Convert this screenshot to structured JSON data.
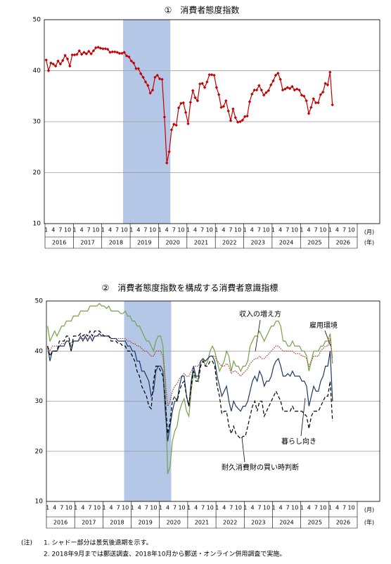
{
  "chart_data": [
    {
      "type": "line",
      "title": "①　消費者態度指数",
      "x": [
        "2016-01",
        "2016-02",
        "2016-03",
        "2016-04",
        "2016-05",
        "2016-06",
        "2016-07",
        "2016-08",
        "2016-09",
        "2016-10",
        "2016-11",
        "2016-12",
        "2017-01",
        "2017-02",
        "2017-03",
        "2017-04",
        "2017-05",
        "2017-06",
        "2017-07",
        "2017-08",
        "2017-09",
        "2017-10",
        "2017-11",
        "2017-12",
        "2018-01",
        "2018-02",
        "2018-03",
        "2018-04",
        "2018-05",
        "2018-06",
        "2018-07",
        "2018-08",
        "2018-09",
        "2018-10",
        "2018-11",
        "2018-12",
        "2019-01",
        "2019-02",
        "2019-03",
        "2019-04",
        "2019-05",
        "2019-06",
        "2019-07",
        "2019-08",
        "2019-09",
        "2019-10",
        "2019-11",
        "2019-12",
        "2020-01",
        "2020-02",
        "2020-03",
        "2020-04",
        "2020-05",
        "2020-06",
        "2020-07",
        "2020-08",
        "2020-09",
        "2020-10",
        "2020-11",
        "2020-12",
        "2021-01",
        "2021-02",
        "2021-03",
        "2021-04",
        "2021-05",
        "2021-06",
        "2021-07",
        "2021-08",
        "2021-09",
        "2021-10",
        "2021-11",
        "2021-12",
        "2022-01",
        "2022-02",
        "2022-03",
        "2022-04",
        "2022-05",
        "2022-06",
        "2022-07",
        "2022-08",
        "2022-09",
        "2022-10",
        "2022-11",
        "2022-12",
        "2023-01",
        "2023-02",
        "2023-03",
        "2023-04",
        "2023-05",
        "2023-06",
        "2023-07",
        "2023-08",
        "2023-09",
        "2023-10",
        "2023-11",
        "2023-12",
        "2024-01",
        "2024-02",
        "2024-03",
        "2024-04",
        "2024-05",
        "2024-06",
        "2024-07",
        "2024-08",
        "2024-09",
        "2024-10",
        "2024-11",
        "2024-12",
        "2025-01",
        "2025-02",
        "2025-03",
        "2025-04",
        "2025-05",
        "2025-06",
        "2025-07",
        "2025-08",
        "2025-09",
        "2025-10",
        "2025-11",
        "2025-12",
        "2026-01",
        "2026-02"
      ],
      "values": [
        42.1,
        40.0,
        41.5,
        41.3,
        40.9,
        41.9,
        41.3,
        42.0,
        43.0,
        42.3,
        40.9,
        43.1,
        43.1,
        43.2,
        43.9,
        43.2,
        43.6,
        43.3,
        43.8,
        43.3,
        43.9,
        44.5,
        44.6,
        44.4,
        44.3,
        44.3,
        44.2,
        43.6,
        43.7,
        43.7,
        43.6,
        43.4,
        43.4,
        43.6,
        42.9,
        42.7,
        41.9,
        41.5,
        40.4,
        40.4,
        39.4,
        38.7,
        37.8,
        37.1,
        35.6,
        36.2,
        38.7,
        39.1,
        38.4,
        38.3,
        30.9,
        21.9,
        24.1,
        28.4,
        29.5,
        29.3,
        32.7,
        33.6,
        33.7,
        31.8,
        29.6,
        33.8,
        36.1,
        34.7,
        34.1,
        37.4,
        37.5,
        36.7,
        37.8,
        39.2,
        39.2,
        39.1,
        36.7,
        35.3,
        32.8,
        33.0,
        34.1,
        32.1,
        30.2,
        32.5,
        30.8,
        29.9,
        30.0,
        30.3,
        31.0,
        31.1,
        33.9,
        35.4,
        36.2,
        36.2,
        37.1,
        36.2,
        35.2,
        35.7,
        36.1,
        37.2,
        38.0,
        39.1,
        39.5,
        38.3,
        36.2,
        36.4,
        36.7,
        36.5,
        36.9,
        36.2,
        36.4,
        36.2,
        35.2,
        35.0,
        34.1,
        31.6,
        32.8,
        34.5,
        33.7,
        33.7,
        35.3,
        35.8,
        37.5,
        37.2,
        39.7,
        33.3
      ],
      "color": "#c00000",
      "markers": true,
      "ylim": [
        10,
        50
      ],
      "yticks": [
        10,
        20,
        30,
        40,
        50
      ],
      "grid": true,
      "shading": [
        "2018-10",
        "2020-05"
      ],
      "month_labels": [
        "1",
        "4",
        "7",
        "10"
      ],
      "year_labels": [
        "2016",
        "2017",
        "2018",
        "2019",
        "2020",
        "2021",
        "2022",
        "2023",
        "2024",
        "2025",
        "2026"
      ],
      "month_unit": "(月)",
      "year_unit": "(年)"
    },
    {
      "type": "line",
      "title": "②　消費者態度指数を構成する消費者意識指標",
      "x": [
        "2016-01",
        "2016-02",
        "2016-03",
        "2016-04",
        "2016-05",
        "2016-06",
        "2016-07",
        "2016-08",
        "2016-09",
        "2016-10",
        "2016-11",
        "2016-12",
        "2017-01",
        "2017-02",
        "2017-03",
        "2017-04",
        "2017-05",
        "2017-06",
        "2017-07",
        "2017-08",
        "2017-09",
        "2017-10",
        "2017-11",
        "2017-12",
        "2018-01",
        "2018-02",
        "2018-03",
        "2018-04",
        "2018-05",
        "2018-06",
        "2018-07",
        "2018-08",
        "2018-09",
        "2018-10",
        "2018-11",
        "2018-12",
        "2019-01",
        "2019-02",
        "2019-03",
        "2019-04",
        "2019-05",
        "2019-06",
        "2019-07",
        "2019-08",
        "2019-09",
        "2019-10",
        "2019-11",
        "2019-12",
        "2020-01",
        "2020-02",
        "2020-03",
        "2020-04",
        "2020-05",
        "2020-06",
        "2020-07",
        "2020-08",
        "2020-09",
        "2020-10",
        "2020-11",
        "2020-12",
        "2021-01",
        "2021-02",
        "2021-03",
        "2021-04",
        "2021-05",
        "2021-06",
        "2021-07",
        "2021-08",
        "2021-09",
        "2021-10",
        "2021-11",
        "2021-12",
        "2022-01",
        "2022-02",
        "2022-03",
        "2022-04",
        "2022-05",
        "2022-06",
        "2022-07",
        "2022-08",
        "2022-09",
        "2022-10",
        "2022-11",
        "2022-12",
        "2023-01",
        "2023-02",
        "2023-03",
        "2023-04",
        "2023-05",
        "2023-06",
        "2023-07",
        "2023-08",
        "2023-09",
        "2023-10",
        "2023-11",
        "2023-12",
        "2024-01",
        "2024-02",
        "2024-03",
        "2024-04",
        "2024-05",
        "2024-06",
        "2024-07",
        "2024-08",
        "2024-09",
        "2024-10",
        "2024-11",
        "2024-12",
        "2025-01",
        "2025-02",
        "2025-03",
        "2025-04",
        "2025-05",
        "2025-06",
        "2025-07",
        "2025-08",
        "2025-09",
        "2025-10",
        "2025-11",
        "2025-12",
        "2026-01",
        "2026-02"
      ],
      "series": [
        {
          "name": "雇用環境",
          "color": "#77a04a",
          "style": "solid",
          "values": [
            45,
            42,
            43,
            44,
            43,
            44,
            45,
            45,
            46,
            46,
            46,
            47,
            47,
            47,
            48,
            48,
            48,
            48,
            49,
            49,
            49,
            49,
            49.5,
            49,
            49,
            48.5,
            49,
            48,
            48,
            48,
            48,
            47.5,
            47.5,
            48,
            47,
            47,
            46,
            46,
            45,
            45,
            44,
            43,
            42,
            42,
            41,
            40,
            42,
            43,
            43,
            41,
            33,
            15.5,
            17,
            22,
            24,
            25,
            28,
            29.5,
            30.5,
            28,
            27,
            32,
            36,
            35,
            34,
            38,
            38.5,
            37,
            38,
            40,
            41,
            40,
            38,
            36,
            37,
            38,
            40,
            39,
            36,
            38,
            37,
            37,
            36,
            37,
            37,
            38,
            41,
            42,
            43,
            43,
            44,
            43,
            42,
            43,
            44,
            45,
            45,
            46,
            46,
            45,
            42,
            42,
            41,
            41,
            42,
            41,
            41,
            41,
            40,
            40,
            39,
            36,
            38,
            40,
            40,
            40,
            41,
            41,
            42,
            42,
            43.5,
            37.5
          ]
        },
        {
          "name": "収入の増え方",
          "color": "#9b3a2a",
          "style": "dotted",
          "values": [
            41,
            40,
            41,
            41,
            41,
            41,
            41.5,
            41.5,
            42,
            42,
            41.5,
            42,
            42,
            42,
            42.5,
            42.5,
            42.5,
            42.5,
            42.5,
            42.5,
            43,
            43,
            43,
            43,
            43,
            43,
            43,
            42.5,
            42.5,
            42.5,
            42.5,
            42.5,
            42.5,
            42.5,
            42,
            42,
            41.5,
            41.5,
            41,
            41,
            40.5,
            40,
            40,
            39.5,
            39,
            39,
            40,
            40,
            40,
            39,
            34,
            29,
            30,
            32,
            33,
            33.5,
            34.5,
            35,
            35.5,
            35,
            35,
            36,
            37,
            37,
            37,
            38,
            38,
            38,
            38.5,
            39,
            39,
            39,
            38,
            37.5,
            37,
            37,
            37.5,
            37,
            35.5,
            36,
            36,
            35.5,
            35,
            35.5,
            36,
            36.5,
            37.5,
            38,
            38.5,
            38.5,
            39,
            38.5,
            38.5,
            39,
            39.5,
            40,
            40.5,
            41,
            41,
            40.5,
            40,
            40,
            40,
            40,
            40,
            39.5,
            39.5,
            39.5,
            39,
            39,
            38.5,
            37,
            38,
            39,
            39,
            39,
            40,
            40.5,
            41,
            41,
            42.5,
            38.5
          ]
        },
        {
          "name": "暮らし向き",
          "color": "#1f3864",
          "style": "solid",
          "values": [
            41,
            38,
            40,
            40,
            40,
            41,
            41,
            41,
            42,
            42,
            40,
            42,
            42,
            42,
            43,
            42,
            43,
            42,
            43,
            42,
            43,
            43,
            43.5,
            43,
            43,
            43,
            43,
            42.5,
            42.5,
            42.5,
            42,
            42,
            42,
            42,
            41,
            41,
            40,
            40,
            38,
            38,
            36,
            36,
            35,
            34,
            31,
            32,
            36,
            37,
            37,
            36,
            28,
            22,
            25,
            28,
            30,
            30,
            33,
            35,
            35,
            31,
            29,
            34,
            37,
            35,
            35,
            38,
            38.5,
            38,
            38.5,
            39,
            39,
            38,
            35,
            33,
            31,
            32,
            33,
            30,
            28,
            30,
            29,
            28.5,
            28,
            29,
            29,
            30,
            32,
            34,
            35,
            34,
            36,
            35,
            33,
            34,
            34,
            35,
            37,
            38,
            38.5,
            37,
            35,
            35,
            35.5,
            35,
            36,
            35,
            35,
            35,
            34,
            34,
            33,
            29,
            31,
            33,
            32,
            32,
            34,
            35,
            37,
            37,
            40,
            30
          ]
        },
        {
          "name": "耐久消費財の買い時判断",
          "color": "#000000",
          "style": "dashed",
          "values": [
            41,
            39,
            40,
            40,
            40,
            42,
            42,
            42,
            43,
            43,
            40,
            43,
            43,
            43,
            43.5,
            43,
            43.5,
            43,
            44,
            43,
            44,
            44,
            44,
            43.5,
            43,
            43,
            43,
            42,
            42,
            42,
            41.5,
            41.5,
            41,
            41,
            40,
            40,
            39,
            38,
            36,
            35,
            33,
            32,
            31,
            29,
            28.5,
            34,
            37,
            37,
            36,
            35,
            30,
            23.5,
            26,
            30,
            31,
            30,
            32,
            33.5,
            34,
            31,
            29,
            33,
            36,
            34,
            34,
            37,
            38,
            37,
            37,
            38,
            38,
            37,
            33,
            31,
            27.5,
            28,
            28,
            25,
            23.5,
            25,
            23.5,
            23,
            22.5,
            23,
            23,
            25,
            27,
            29,
            30,
            28,
            30,
            30,
            27,
            28,
            29,
            30,
            31,
            32,
            31,
            30,
            28,
            28,
            28,
            28,
            29,
            28,
            28,
            28,
            28,
            27.5,
            27,
            24.5,
            27,
            28,
            28,
            28,
            29,
            30,
            31,
            31,
            34,
            26
          ]
        }
      ],
      "ylim": [
        10,
        50
      ],
      "yticks": [
        10,
        20,
        30,
        40,
        50
      ],
      "grid": true,
      "shading": [
        "2018-10",
        "2020-05"
      ],
      "month_labels": [
        "1",
        "4",
        "7",
        "10"
      ],
      "year_labels": [
        "2016",
        "2017",
        "2018",
        "2019",
        "2020",
        "2021",
        "2022",
        "2023",
        "2024",
        "2025",
        "2026"
      ],
      "month_unit": "(月)",
      "year_unit": "(年)"
    }
  ],
  "notes": {
    "label": "(注)",
    "items": [
      "1. シャドー部分は景気後退期を示す。",
      "2. 2018年9月までは郵送調査、2018年10月から郵送・オンライン併用調査で実施。"
    ]
  }
}
